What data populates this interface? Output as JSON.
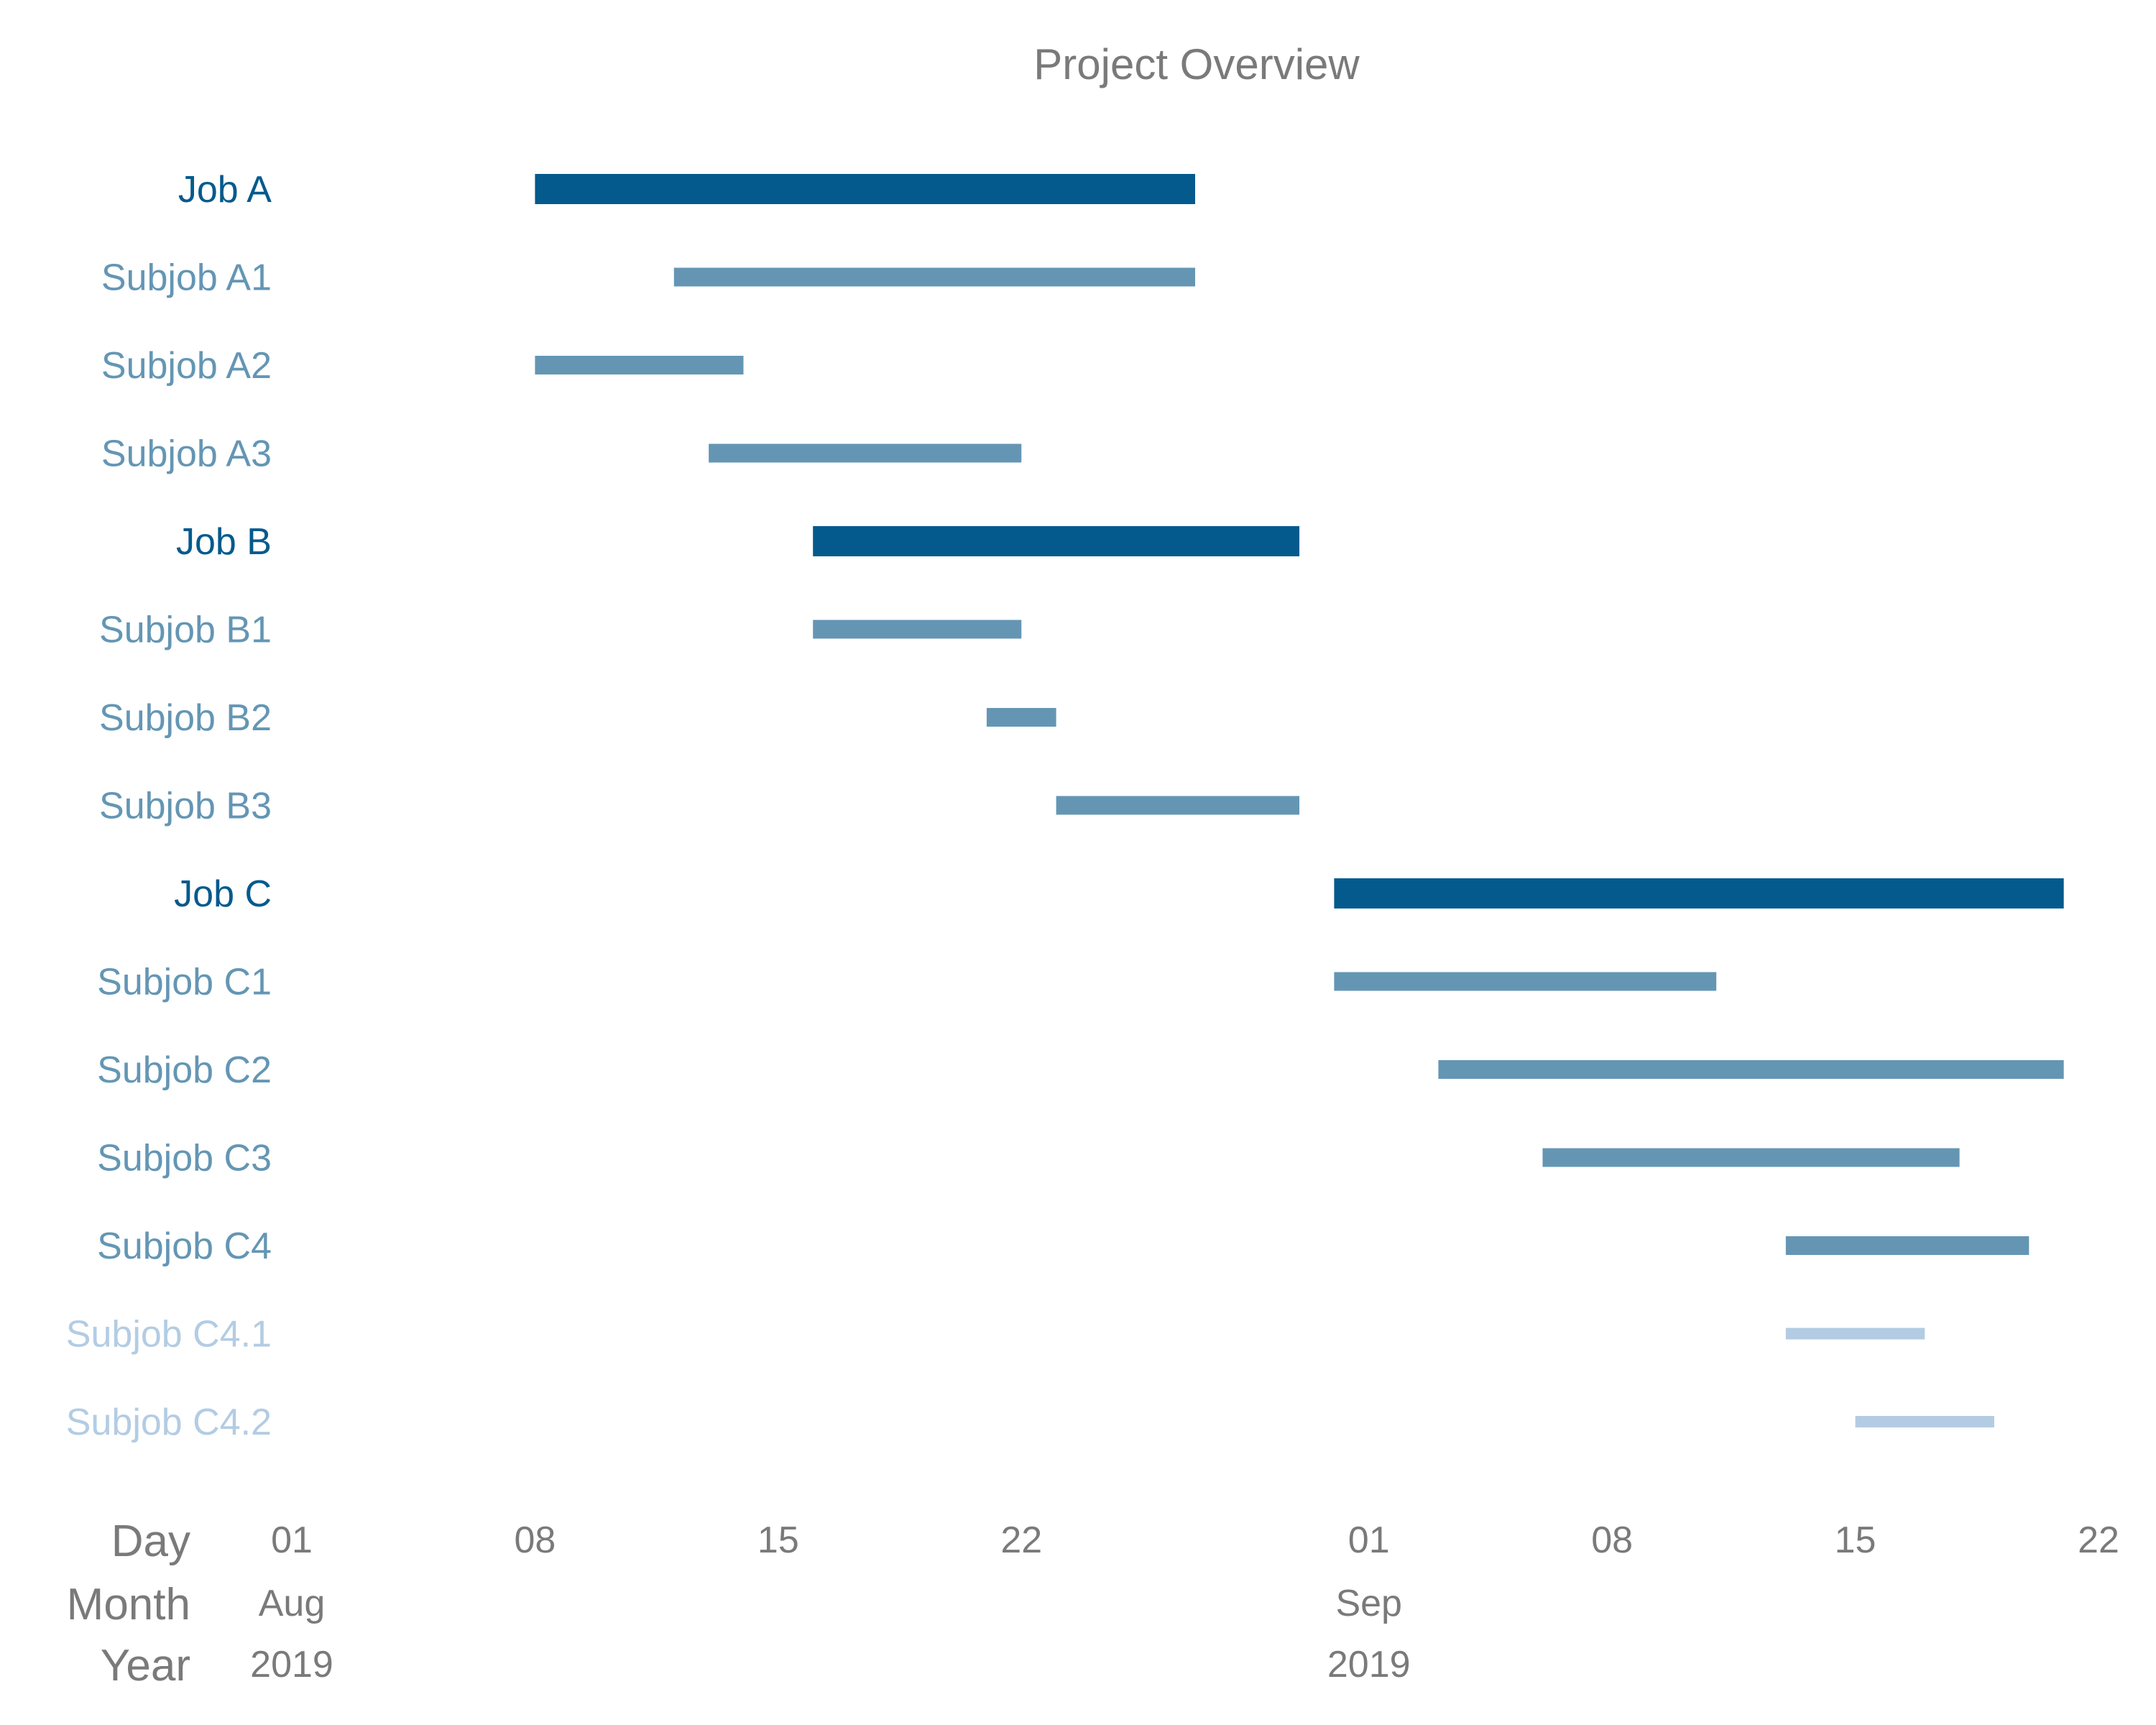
{
  "chart_data": {
    "type": "gantt",
    "title": "Project Overview",
    "colors": {
      "job": "#045a8d",
      "subjob": "#6496b4",
      "subsubjob": "#b3cce3",
      "text_gray": "#7a7a7a"
    },
    "tasks": [
      {
        "label": "Job A",
        "level": 0,
        "start": "2019-08-08",
        "end": "2019-08-27"
      },
      {
        "label": "Subjob A1",
        "level": 1,
        "start": "2019-08-12",
        "end": "2019-08-27"
      },
      {
        "label": "Subjob A2",
        "level": 1,
        "start": "2019-08-08",
        "end": "2019-08-14"
      },
      {
        "label": "Subjob A3",
        "level": 1,
        "start": "2019-08-13",
        "end": "2019-08-22"
      },
      {
        "label": "Job B",
        "level": 0,
        "start": "2019-08-16",
        "end": "2019-08-30"
      },
      {
        "label": "Subjob B1",
        "level": 1,
        "start": "2019-08-16",
        "end": "2019-08-22"
      },
      {
        "label": "Subjob B2",
        "level": 1,
        "start": "2019-08-21",
        "end": "2019-08-23"
      },
      {
        "label": "Subjob B3",
        "level": 1,
        "start": "2019-08-23",
        "end": "2019-08-30"
      },
      {
        "label": "Job C",
        "level": 0,
        "start": "2019-08-31",
        "end": "2019-09-21"
      },
      {
        "label": "Subjob C1",
        "level": 1,
        "start": "2019-08-31",
        "end": "2019-09-11"
      },
      {
        "label": "Subjob C2",
        "level": 1,
        "start": "2019-09-03",
        "end": "2019-09-21"
      },
      {
        "label": "Subjob C3",
        "level": 1,
        "start": "2019-09-06",
        "end": "2019-09-18"
      },
      {
        "label": "Subjob C4",
        "level": 1,
        "start": "2019-09-13",
        "end": "2019-09-20"
      },
      {
        "label": "Subjob C4.1",
        "level": 2,
        "start": "2019-09-13",
        "end": "2019-09-17"
      },
      {
        "label": "Subjob C4.2",
        "level": 2,
        "start": "2019-09-15",
        "end": "2019-09-19"
      }
    ],
    "x_axis": {
      "range": [
        "2019-08-01",
        "2019-09-22"
      ],
      "rows": [
        {
          "name": "Day",
          "ticks": [
            {
              "date": "2019-08-01",
              "label": "01"
            },
            {
              "date": "2019-08-08",
              "label": "08"
            },
            {
              "date": "2019-08-15",
              "label": "15"
            },
            {
              "date": "2019-08-22",
              "label": "22"
            },
            {
              "date": "2019-09-01",
              "label": "01"
            },
            {
              "date": "2019-09-08",
              "label": "08"
            },
            {
              "date": "2019-09-15",
              "label": "15"
            },
            {
              "date": "2019-09-22",
              "label": "22"
            }
          ]
        },
        {
          "name": "Month",
          "ticks": [
            {
              "date": "2019-08-01",
              "label": "Aug"
            },
            {
              "date": "2019-09-01",
              "label": "Sep"
            }
          ]
        },
        {
          "name": "Year",
          "ticks": [
            {
              "date": "2019-08-01",
              "label": "2019"
            },
            {
              "date": "2019-09-01",
              "label": "2019"
            }
          ]
        }
      ]
    },
    "grid": false,
    "legend": "none"
  }
}
